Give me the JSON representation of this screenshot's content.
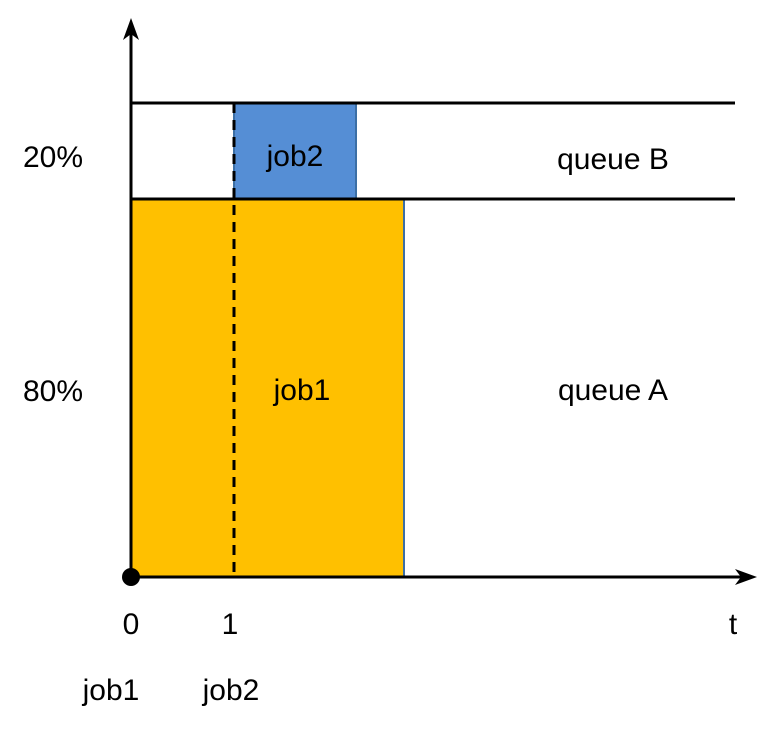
{
  "labels": {
    "pct_top": "20%",
    "pct_bottom": "80%",
    "queue_b": "queue B",
    "queue_a": "queue A",
    "job1_block": "job1",
    "job2_block": "job2",
    "tick_0": "0",
    "tick_1": "1",
    "axis_t": "t",
    "arrival_job1": "job1",
    "arrival_job2": "job2"
  },
  "colors": {
    "job1": "#FFC000",
    "job2": "#558ED5",
    "job1_edge": "#3C6FA5",
    "job2_edge": "#3C6FA5",
    "axis": "#000000"
  }
}
